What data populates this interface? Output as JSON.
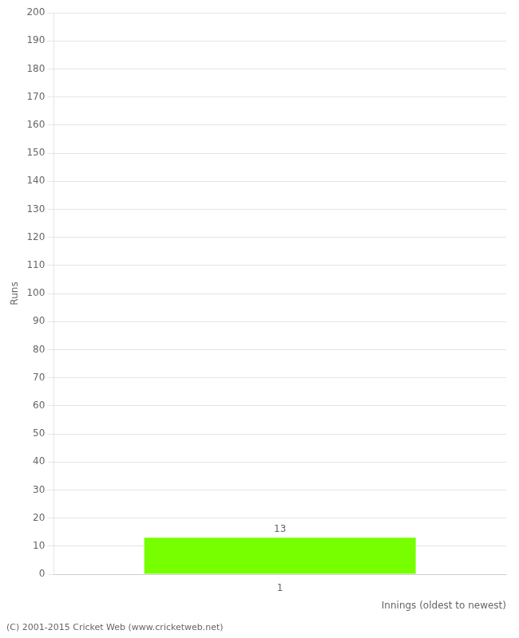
{
  "chart_data": {
    "type": "bar",
    "xlabel": "Innings (oldest to newest)",
    "ylabel": "Runs",
    "categories": [
      "1"
    ],
    "values": [
      13
    ],
    "color": "#77ff00",
    "ylim": [
      0,
      200
    ],
    "yticks": [
      0,
      10,
      20,
      30,
      40,
      50,
      60,
      70,
      80,
      90,
      100,
      110,
      120,
      130,
      140,
      150,
      160,
      170,
      180,
      190,
      200
    ],
    "grid": true,
    "data_labels": true,
    "annotations": [
      "(C) 2001-2015 Cricket Web (www.cricketweb.net)"
    ]
  }
}
